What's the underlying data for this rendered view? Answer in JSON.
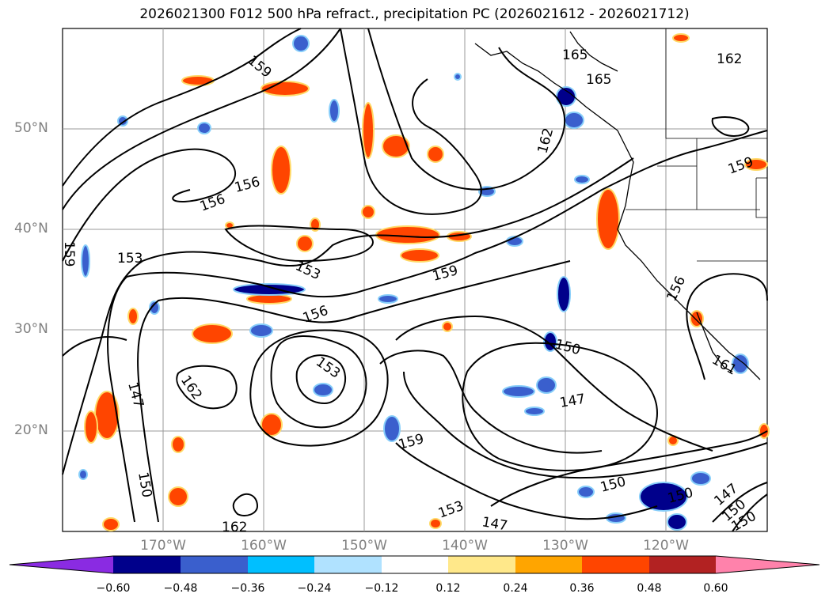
{
  "title": "2026021300 F012 500 hPa refract., precipitation PC (2026021612 - 2026021712)",
  "map": {
    "latitude_labels": [
      "50°N",
      "40°N",
      "30°N",
      "20°N"
    ],
    "longitude_labels": [
      "170°W",
      "160°W",
      "150°W",
      "140°W",
      "130°W",
      "120°W"
    ],
    "contour_labels": [
      "159",
      "165",
      "165",
      "162",
      "162",
      "156",
      "156",
      "153",
      "159",
      "153",
      "159",
      "156",
      "153",
      "150",
      "162",
      "147",
      "147",
      "159",
      "150",
      "153",
      "147",
      "150",
      "150",
      "147",
      "150",
      "150",
      "162",
      "156",
      "159",
      "161"
    ]
  },
  "colorbar": {
    "ticks": [
      "−0.60",
      "−0.48",
      "−0.36",
      "−0.24",
      "−0.12",
      "0.12",
      "0.24",
      "0.36",
      "0.48",
      "0.60"
    ],
    "colors": [
      "#8a2be2",
      "#00008b",
      "#3a5fcd",
      "#00bfff",
      "#b0e2ff",
      "#ffffff",
      "#ffe88a",
      "#ffa500",
      "#ff4500",
      "#b22222",
      "#ff82ab"
    ]
  }
}
